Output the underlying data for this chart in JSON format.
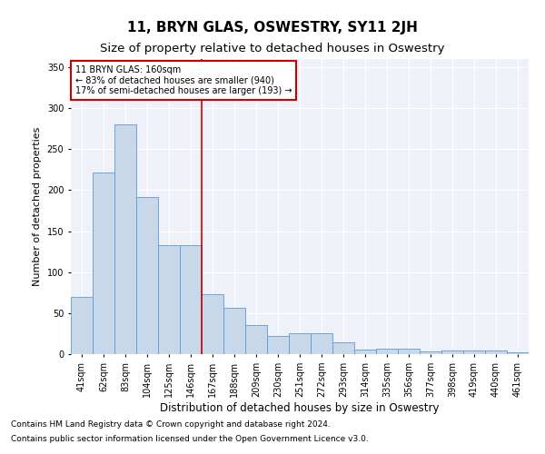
{
  "title": "11, BRYN GLAS, OSWESTRY, SY11 2JH",
  "subtitle": "Size of property relative to detached houses in Oswestry",
  "xlabel": "Distribution of detached houses by size in Oswestry",
  "ylabel": "Number of detached properties",
  "categories": [
    "41sqm",
    "62sqm",
    "83sqm",
    "104sqm",
    "125sqm",
    "146sqm",
    "167sqm",
    "188sqm",
    "209sqm",
    "230sqm",
    "251sqm",
    "272sqm",
    "293sqm",
    "314sqm",
    "335sqm",
    "356sqm",
    "377sqm",
    "398sqm",
    "419sqm",
    "440sqm",
    "461sqm"
  ],
  "values": [
    70,
    222,
    280,
    192,
    133,
    133,
    73,
    57,
    35,
    22,
    25,
    25,
    14,
    5,
    7,
    7,
    3,
    4,
    4,
    4,
    2
  ],
  "bar_color": "#c8d8e8",
  "bar_edge_color": "#5b9bd5",
  "bg_color": "#eef2f8",
  "grid_color": "#ffffff",
  "vline_x_idx": 6,
  "vline_color": "#cc0000",
  "annotation_text": "11 BRYN GLAS: 160sqm\n← 83% of detached houses are smaller (940)\n17% of semi-detached houses are larger (193) →",
  "annotation_box_color": "#cc0000",
  "ylim": [
    0,
    360
  ],
  "yticks": [
    0,
    50,
    100,
    150,
    200,
    250,
    300,
    350
  ],
  "footer1": "Contains HM Land Registry data © Crown copyright and database right 2024.",
  "footer2": "Contains public sector information licensed under the Open Government Licence v3.0.",
  "title_fontsize": 11,
  "subtitle_fontsize": 9.5,
  "ylabel_fontsize": 8,
  "xlabel_fontsize": 8.5,
  "tick_fontsize": 7,
  "ann_fontsize": 7,
  "footer_fontsize": 6.5
}
